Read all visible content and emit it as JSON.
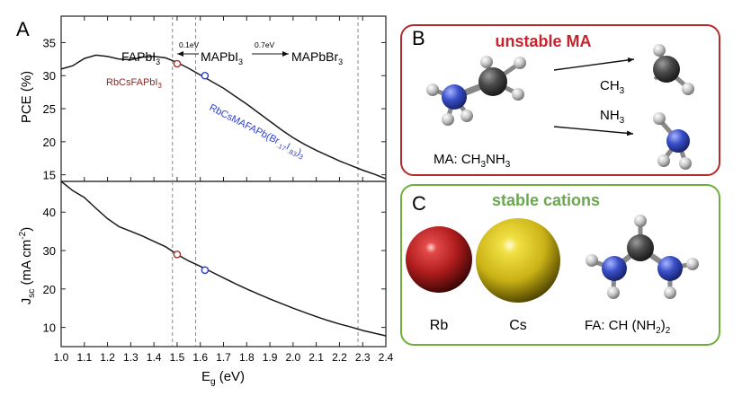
{
  "panel_a": {
    "label": "A",
    "top_transitions": {
      "fa": "FAPbI",
      "fa_sub": "3",
      "ma": "MAPbI",
      "ma_sub": "3",
      "mabr": "MAPbBr",
      "mabr_sub": "3",
      "gap1": "0.1eV",
      "gap2": "0.7eV"
    },
    "annotations": {
      "red_label": "RbCsFAPbI",
      "red_label_sub": "3",
      "blue_label_a": "RbCsMAFAPb(Br",
      "blue_label_sub1": ".17",
      "blue_label_b": "I",
      "blue_label_sub2": ".83",
      "blue_label_c": ")",
      "blue_label_sub3": "3"
    }
  },
  "panel_b": {
    "label": "B",
    "title": "unstable MA",
    "ch3": "CH",
    "ch3_sub": "3",
    "nh3": "NH",
    "nh3_sub": "3",
    "ma_prefix": "MA: CH",
    "ma_sub1": "3",
    "ma_mid": "NH",
    "ma_sub2": "3"
  },
  "panel_c": {
    "label": "C",
    "title": "stable cations",
    "rb": "Rb",
    "cs": "Cs",
    "fa_prefix": "FA: CH (NH",
    "fa_sub": "2",
    "fa_suffix": ")",
    "fa_sub2": "2"
  },
  "colors": {
    "line": "#1a1a1a",
    "red_marker": "#a03028",
    "blue_marker": "#2a3fd0",
    "panel_b_border": "#b52a2a",
    "panel_c_border": "#6fae3a",
    "title_b": "#c8232c",
    "title_c": "#6aa84f",
    "rb_sphere": "#b01c1c",
    "cs_sphere": "#d8c21a",
    "nitrogen": "#3a4fc8",
    "carbon": "#4a4a4a",
    "hydrogen": "#c8c8c8"
  },
  "chart_data": [
    {
      "type": "line",
      "name": "top",
      "xlabel": "",
      "ylabel_main": "PCE (%)",
      "ylim": [
        14,
        39
      ],
      "yticks": [
        15,
        20,
        25,
        30,
        35
      ],
      "xlim": [
        1.0,
        2.4
      ],
      "vlines": [
        1.48,
        1.58,
        2.28
      ],
      "series": [
        {
          "x": [
            1.0,
            1.05,
            1.1,
            1.15,
            1.2,
            1.25,
            1.3,
            1.35,
            1.4,
            1.45,
            1.5,
            1.55,
            1.6,
            1.65,
            1.7,
            1.75,
            1.8,
            1.85,
            1.9,
            1.95,
            2.0,
            2.05,
            2.1,
            2.15,
            2.2,
            2.25,
            2.3,
            2.35,
            2.4
          ],
          "y": [
            31.0,
            31.5,
            32.6,
            33.1,
            32.9,
            32.5,
            32.4,
            32.8,
            32.9,
            32.7,
            32.0,
            31.1,
            30.1,
            29.1,
            28.1,
            26.9,
            25.7,
            24.4,
            23.1,
            21.8,
            20.6,
            19.6,
            18.7,
            17.9,
            17.1,
            16.4,
            15.7,
            15.1,
            14.4
          ]
        }
      ],
      "markers": [
        {
          "x": 1.5,
          "y": 31.8,
          "color": "red"
        },
        {
          "x": 1.62,
          "y": 30.0,
          "color": "blue"
        }
      ]
    },
    {
      "type": "line",
      "name": "bottom",
      "xlabel_main": "E",
      "xlabel_sub": "g",
      "xlabel_tail": " (eV)",
      "ylabel_main": "J",
      "ylabel_sub": "sc",
      "ylabel_tail": " (mA cm",
      "ylabel_sup": "-2",
      "ylabel_end": ")",
      "ylim": [
        5,
        48
      ],
      "yticks": [
        10,
        20,
        30,
        40
      ],
      "xlim": [
        1.0,
        2.4
      ],
      "xticks": [
        1.0,
        1.1,
        1.2,
        1.3,
        1.4,
        1.5,
        1.6,
        1.7,
        1.8,
        1.9,
        2.0,
        2.1,
        2.2,
        2.3,
        2.4
      ],
      "xtick_labels": [
        "1.0",
        "1.1",
        "1.2",
        "1.3",
        "1.4",
        "1.5",
        "1.6",
        "1.7",
        "1.8",
        "1.9",
        "2.0",
        "2.1",
        "2.2",
        "2.3",
        "2.4"
      ],
      "vlines": [
        1.48,
        1.58,
        2.28
      ],
      "series": [
        {
          "x": [
            1.0,
            1.05,
            1.1,
            1.15,
            1.2,
            1.25,
            1.3,
            1.35,
            1.4,
            1.45,
            1.5,
            1.55,
            1.6,
            1.65,
            1.7,
            1.75,
            1.8,
            1.85,
            1.9,
            1.95,
            2.0,
            2.05,
            2.1,
            2.15,
            2.2,
            2.25,
            2.3,
            2.35,
            2.4
          ],
          "y": [
            48.0,
            45.6,
            43.8,
            41.0,
            38.3,
            36.2,
            35.0,
            33.8,
            32.4,
            31.0,
            29.0,
            27.3,
            25.9,
            24.4,
            22.9,
            21.4,
            20.0,
            18.7,
            17.4,
            16.2,
            15.0,
            13.9,
            12.8,
            11.8,
            10.9,
            10.1,
            9.2,
            8.5,
            7.8
          ]
        }
      ],
      "markers": [
        {
          "x": 1.5,
          "y": 29.0,
          "color": "red"
        },
        {
          "x": 1.62,
          "y": 24.9,
          "color": "blue"
        }
      ]
    }
  ]
}
